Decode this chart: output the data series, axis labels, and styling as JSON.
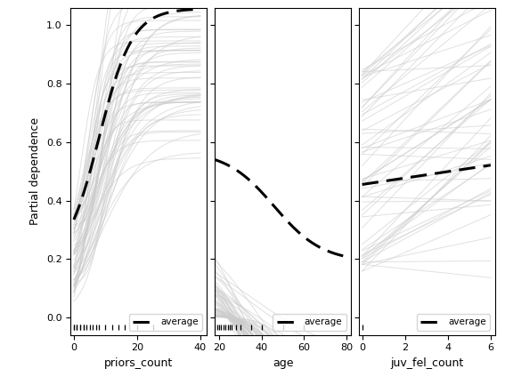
{
  "ylabel": "Partial dependence",
  "subplots": [
    {
      "xlabel": "priors_count",
      "xlim": [
        -1,
        42
      ],
      "ylim": [
        -0.06,
        1.06
      ],
      "rug_values": [
        0,
        0,
        1,
        1,
        2,
        2,
        3,
        3,
        4,
        5,
        6,
        7,
        8,
        10,
        12,
        14,
        16,
        20,
        25
      ]
    },
    {
      "xlabel": "age",
      "xlim": [
        18,
        82
      ],
      "ylim": [
        -0.06,
        1.06
      ],
      "rug_values": [
        18,
        19,
        20,
        21,
        22,
        23,
        24,
        25,
        26,
        28,
        30,
        35,
        40,
        50,
        60
      ]
    },
    {
      "xlabel": "juv_fel_count",
      "xlim": [
        -0.15,
        6.2
      ],
      "ylim": [
        -0.06,
        1.06
      ],
      "rug_values": [
        0
      ]
    }
  ],
  "ind_color": "#cccccc",
  "ind_alpha": 0.6,
  "ind_lw": 0.7,
  "avg_color": "#000000",
  "avg_lw": 2.2,
  "avg_dash": [
    6,
    3
  ],
  "legend_label": "average",
  "n_lines": 60,
  "random_seed": 42
}
